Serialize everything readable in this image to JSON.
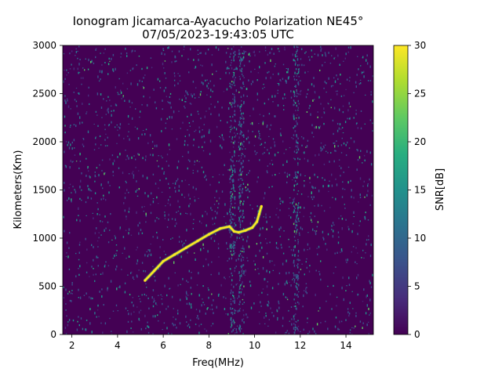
{
  "chart_data": {
    "type": "heatmap",
    "title_line1": "Ionogram Jicamarca-Ayacucho Polarization NE45°",
    "title_line2": "07/05/2023-19:43:05 UTC",
    "xlabel": "Freq(MHz)",
    "ylabel": "Kilometers(Km)",
    "colorbar_label": "SNR[dB]",
    "xlim": [
      1.6,
      15.2
    ],
    "ylim": [
      0,
      3000
    ],
    "x_ticks": [
      2,
      4,
      6,
      8,
      10,
      12,
      14
    ],
    "x_tick_labels": [
      "2",
      "4",
      "6",
      "8",
      "10",
      "12",
      "14"
    ],
    "y_ticks": [
      0,
      500,
      1000,
      1500,
      2000,
      2500,
      3000
    ],
    "y_tick_labels": [
      "0",
      "500",
      "1000",
      "1500",
      "2000",
      "2500",
      "3000"
    ],
    "clim": [
      0,
      30
    ],
    "colorbar_ticks": [
      0,
      5,
      10,
      15,
      20,
      25,
      30
    ],
    "colorbar_tick_labels": [
      "0",
      "5",
      "10",
      "15",
      "20",
      "25",
      "30"
    ],
    "colormap": "viridis",
    "grid": false,
    "background_snr_db": 0,
    "trace": {
      "snr_db": 30,
      "x": [
        5.2,
        5.6,
        6.0,
        6.5,
        7.0,
        7.5,
        8.0,
        8.5,
        8.9,
        9.1,
        9.3,
        9.6,
        9.9,
        10.1,
        10.2,
        10.3
      ],
      "y": [
        560,
        660,
        760,
        830,
        900,
        970,
        1040,
        1100,
        1120,
        1070,
        1060,
        1080,
        1110,
        1170,
        1250,
        1330
      ]
    },
    "noise_bands_mhz": [
      9.0,
      9.4,
      11.8
    ]
  }
}
